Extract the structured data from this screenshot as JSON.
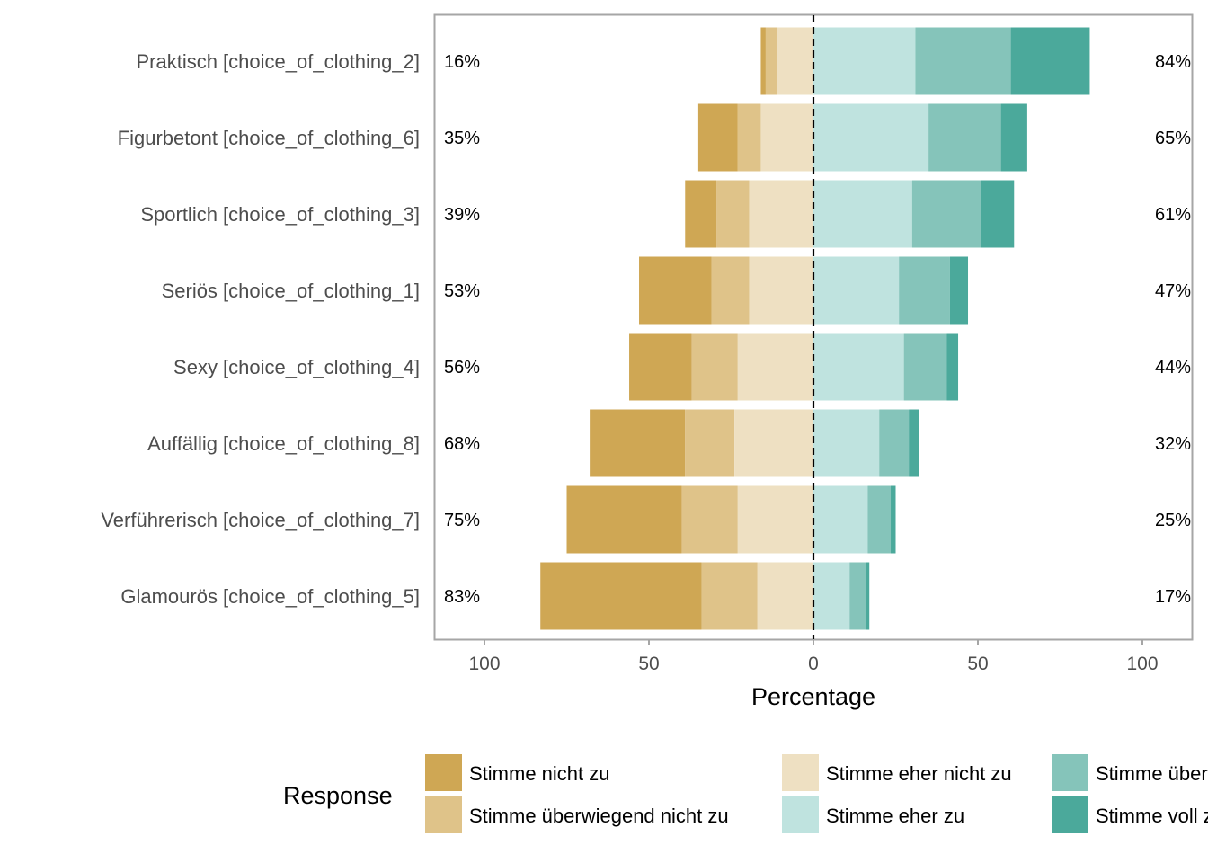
{
  "chart_data": {
    "type": "bar",
    "subtype": "diverging-stacked-likert",
    "xlabel": "Percentage",
    "xlim": [
      -100,
      100
    ],
    "xticks": [
      -100,
      -50,
      0,
      50,
      100
    ],
    "xtick_labels": [
      "100",
      "50",
      "0",
      "50",
      "100"
    ],
    "categories": [
      "Praktisch [choice_of_clothing_2]",
      "Figurbetont [choice_of_clothing_6]",
      "Sportlich [choice_of_clothing_3]",
      "Seriös [choice_of_clothing_1]",
      "Sexy [choice_of_clothing_4]",
      "Auffällig [choice_of_clothing_8]",
      "Verführerisch [choice_of_clothing_7]",
      "Glamourös [choice_of_clothing_5]"
    ],
    "series": [
      {
        "name": "Stimme nicht zu",
        "side": "negative",
        "color": "#CFA754",
        "values": [
          1.5,
          12,
          9.5,
          22,
          19,
          29,
          35,
          49
        ]
      },
      {
        "name": "Stimme überwiegend nicht zu",
        "side": "negative",
        "color": "#DFC389",
        "values": [
          3.5,
          7,
          10,
          11.5,
          14,
          15,
          17,
          17
        ]
      },
      {
        "name": "Stimme eher nicht zu",
        "side": "negative",
        "color": "#EEE0C2",
        "values": [
          11,
          16,
          19.5,
          19.5,
          23,
          24,
          23,
          17
        ]
      },
      {
        "name": "Stimme eher zu",
        "side": "positive",
        "color": "#BFE3DF",
        "values": [
          31,
          35,
          30,
          26,
          27.5,
          20,
          16.5,
          11
        ]
      },
      {
        "name": "Stimme überwiegend zu",
        "side": "positive",
        "color": "#85C4BA",
        "values": [
          29,
          22,
          21,
          15.5,
          13,
          9,
          7,
          5
        ]
      },
      {
        "name": "Stimme voll zu",
        "side": "positive",
        "color": "#4BA99B",
        "values": [
          24,
          8,
          10,
          5.5,
          3.5,
          3,
          1.5,
          1
        ]
      }
    ],
    "left_pct_labels": [
      "16%",
      "35%",
      "39%",
      "53%",
      "56%",
      "68%",
      "75%",
      "83%"
    ],
    "right_pct_labels": [
      "84%",
      "65%",
      "61%",
      "47%",
      "44%",
      "32%",
      "25%",
      "17%"
    ],
    "grid": false,
    "legend": {
      "title": "Response",
      "placement": "bottom",
      "items": [
        {
          "label": "Stimme nicht zu",
          "color": "#CFA754"
        },
        {
          "label": "Stimme überwiegend nicht zu",
          "color": "#DFC389"
        },
        {
          "label": "Stimme eher nicht zu",
          "color": "#EEE0C2"
        },
        {
          "label": "Stimme eher zu",
          "color": "#BFE3DF"
        },
        {
          "label": "Stimme überwiegend zu",
          "color": "#85C4BA"
        },
        {
          "label": "Stimme voll zu",
          "color": "#4BA99B"
        }
      ]
    }
  }
}
